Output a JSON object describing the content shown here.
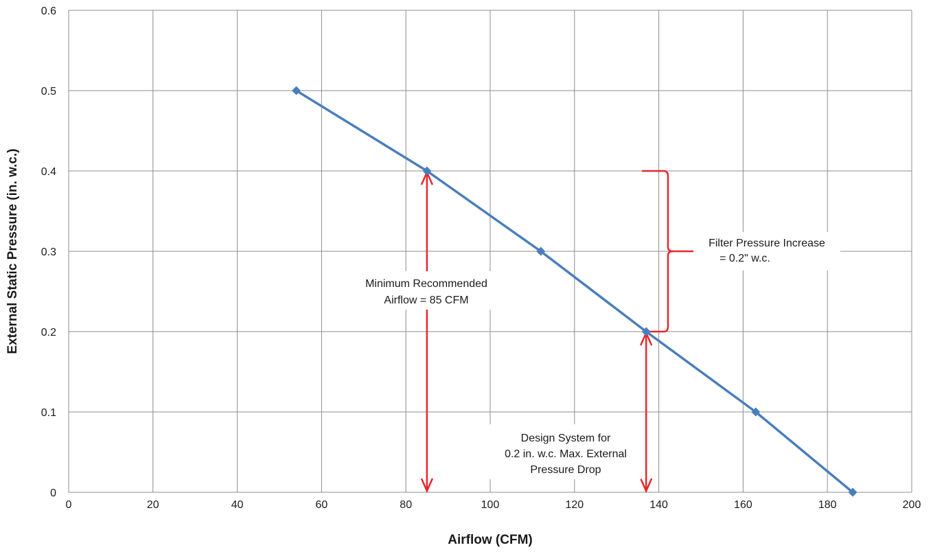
{
  "chart_data": {
    "type": "line",
    "title": "",
    "xlabel": "Airflow (CFM)",
    "ylabel": "External Static Pressure (in. w.c.)",
    "xlim": [
      0,
      200
    ],
    "ylim": [
      0,
      0.6
    ],
    "grid": true,
    "x_ticks": [
      "0",
      "20",
      "40",
      "60",
      "80",
      "100",
      "120",
      "140",
      "160",
      "180",
      "200"
    ],
    "y_ticks": [
      "0",
      "0.1",
      "0.2",
      "0.3",
      "0.4",
      "0.5",
      "0.6"
    ],
    "series": [
      {
        "color": "#4a7ebb",
        "x": [
          54,
          85,
          112,
          137,
          163,
          186
        ],
        "y": [
          0.5,
          0.4,
          0.3,
          0.2,
          0.1,
          0
        ]
      }
    ],
    "annotations": {
      "min_airflow": {
        "lines": [
          "Minimum Recommended",
          "Airflow = 85 CFM"
        ],
        "x": 85,
        "y_from": 0,
        "y_to": 0.4
      },
      "design_system": {
        "lines": [
          "Design System for",
          "0.2 in. w.c. Max. External",
          "Pressure Drop"
        ],
        "x": 137,
        "y_from": 0,
        "y_to": 0.2
      },
      "filter_increase": {
        "lines": [
          "Filter Pressure Increase",
          "= 0.2\" w.c."
        ],
        "y_from": 0.2,
        "y_to": 0.4
      },
      "color": "#e8262b"
    }
  }
}
